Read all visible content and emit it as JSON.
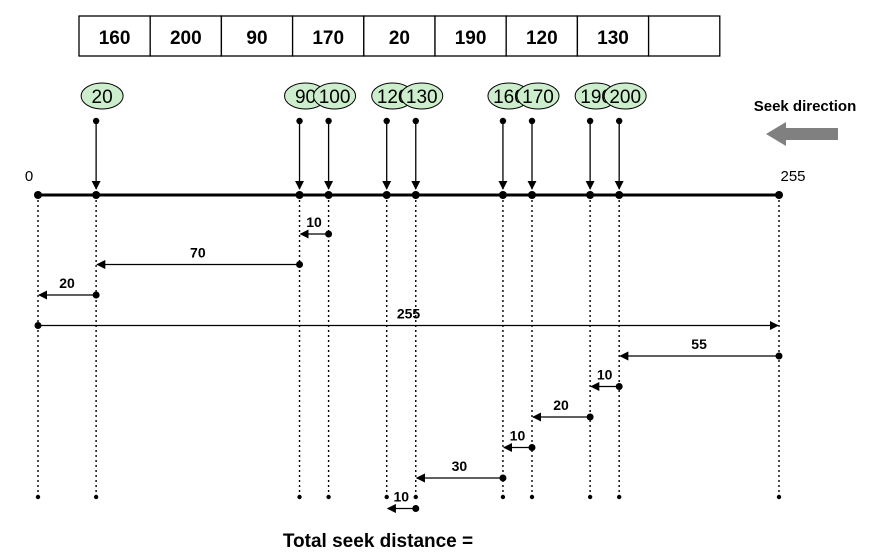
{
  "queue": {
    "values": [
      "160",
      "200",
      "90",
      "170",
      "20",
      "190",
      "120",
      "130",
      ""
    ]
  },
  "requests": [
    "20",
    "90",
    "100",
    "120",
    "130",
    "160",
    "170",
    "190",
    "200"
  ],
  "track_min": 0,
  "track_max": 255,
  "axis_labels": {
    "min": "0",
    "max": "255"
  },
  "head_start": 100,
  "seek_direction_label": "Seek direction",
  "moves": [
    {
      "from": 100,
      "to": 90,
      "distance": "10"
    },
    {
      "from": 90,
      "to": 20,
      "distance": "70"
    },
    {
      "from": 20,
      "to": 0,
      "distance": "20"
    },
    {
      "from": 0,
      "to": 255,
      "distance": "255"
    },
    {
      "from": 255,
      "to": 200,
      "distance": "55"
    },
    {
      "from": 200,
      "to": 190,
      "distance": "10"
    },
    {
      "from": 190,
      "to": 170,
      "distance": "20"
    },
    {
      "from": 170,
      "to": 160,
      "distance": "10"
    },
    {
      "from": 160,
      "to": 130,
      "distance": "30"
    },
    {
      "from": 130,
      "to": 120,
      "distance": "10"
    }
  ],
  "total_label": "Total seek distance =",
  "colors": {
    "bubble_fill": "#cdeecd",
    "arrow_gray": "#808080",
    "line": "#000000"
  }
}
